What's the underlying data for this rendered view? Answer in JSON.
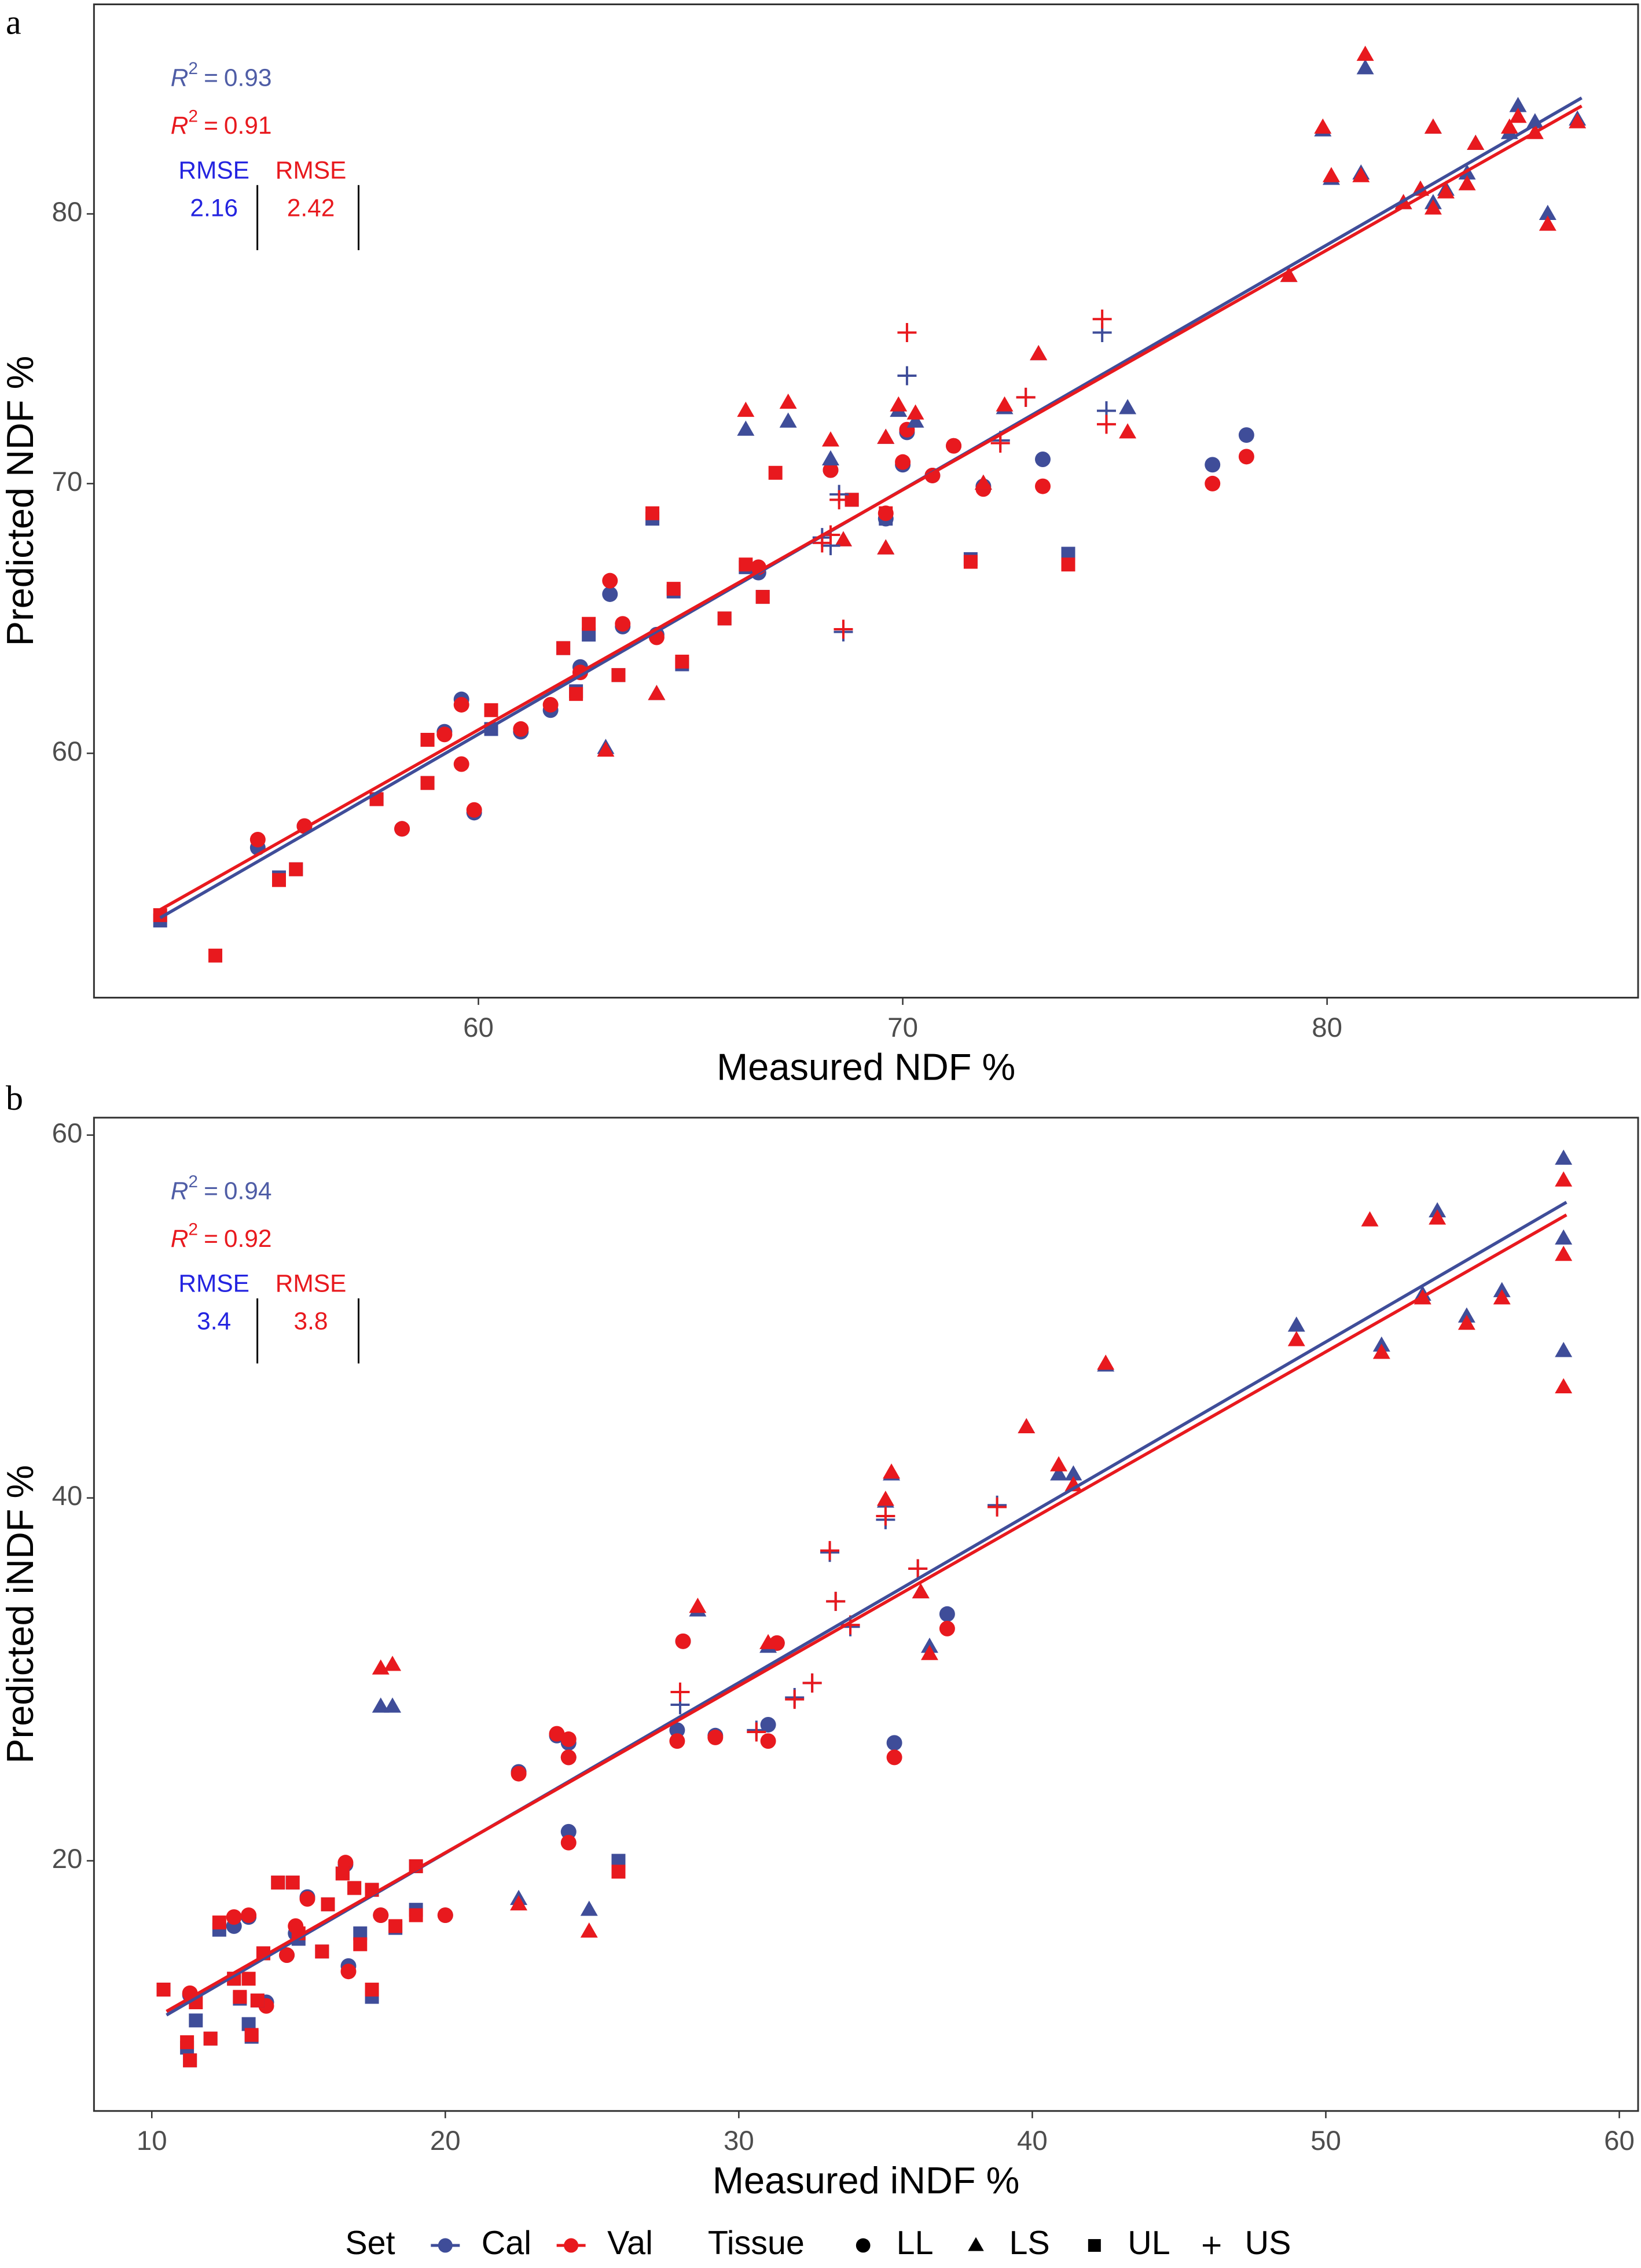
{
  "chart_data": [
    {
      "type": "scatter",
      "panel": "a",
      "x_label": "Measured NDF %",
      "y_label": "Predicted NDF %",
      "xlim": [
        50.94,
        87.33
      ],
      "ylim": [
        50.94,
        87.77
      ],
      "xticks": [
        60,
        70,
        80
      ],
      "yticks": [
        60,
        70,
        80
      ],
      "r2_symbol": "R",
      "r2_sup": "2",
      "r2_eq": "=",
      "rmse_label": "RMSE",
      "stats": [
        {
          "set": "Cal",
          "r2": 0.93,
          "rmse": 2.16,
          "color": "#4f5da6",
          "rmse_color": "#2424e0"
        },
        {
          "set": "Val",
          "r2": 0.91,
          "rmse": 2.42,
          "color": "#e8191e",
          "rmse_color": "#e8191e"
        }
      ],
      "fit_lines": [
        {
          "set": "Cal",
          "x": [
            52.5,
            86
          ],
          "y": [
            53.9,
            84.3
          ]
        },
        {
          "set": "Val",
          "x": [
            52.5,
            86
          ],
          "y": [
            54.2,
            84.0
          ]
        }
      ],
      "series": [
        {
          "set": "Cal",
          "tissue": "UL",
          "x": [
            52.5,
            55.3,
            55.7,
            57.6,
            58.8,
            58.8,
            60.3,
            62.0,
            62.3,
            62.6,
            63.3,
            64.1,
            64.6,
            64.8,
            65.8,
            66.3,
            66.7,
            68.8,
            69.6,
            71.6,
            73.9
          ],
          "y": [
            53.8,
            55.4,
            55.7,
            58.3,
            58.9,
            60.5,
            60.9,
            63.9,
            62.3,
            64.4,
            62.9,
            68.7,
            66.0,
            63.3,
            65.0,
            66.9,
            65.8,
            69.4,
            68.7,
            67.2,
            67.4
          ]
        },
        {
          "set": "Val",
          "tissue": "UL",
          "x": [
            52.5,
            53.8,
            55.3,
            55.7,
            57.6,
            58.8,
            58.8,
            60.3,
            62.0,
            62.3,
            62.6,
            63.3,
            64.1,
            64.6,
            64.8,
            65.8,
            66.3,
            66.7,
            67.0,
            68.8,
            69.6,
            71.6,
            73.9
          ],
          "y": [
            54.0,
            52.5,
            55.3,
            55.7,
            58.3,
            58.9,
            60.5,
            61.6,
            63.9,
            62.2,
            64.8,
            62.9,
            68.9,
            66.1,
            63.4,
            65.0,
            67.0,
            65.8,
            70.4,
            69.4,
            68.9,
            67.1,
            67.0
          ]
        },
        {
          "set": "Cal",
          "tissue": "LL",
          "x": [
            54.8,
            55.9,
            58.2,
            59.2,
            59.6,
            59.9,
            61.0,
            61.7,
            62.4,
            63.1,
            63.4,
            64.2,
            66.6,
            68.3,
            69.6,
            70.0,
            70.1,
            70.7,
            71.2,
            71.9,
            73.3,
            77.3,
            78.1
          ],
          "y": [
            56.5,
            57.3,
            57.2,
            60.8,
            62.0,
            57.8,
            60.8,
            61.6,
            63.2,
            65.9,
            64.7,
            64.4,
            66.7,
            70.5,
            68.7,
            70.7,
            71.9,
            70.3,
            71.4,
            69.9,
            70.9,
            70.7,
            71.8
          ]
        },
        {
          "set": "Val",
          "tissue": "LL",
          "x": [
            54.8,
            55.9,
            58.2,
            59.2,
            59.6,
            59.6,
            59.9,
            61.0,
            61.7,
            62.4,
            63.1,
            63.4,
            64.2,
            66.6,
            68.3,
            69.6,
            70.0,
            70.1,
            70.7,
            71.2,
            71.9,
            73.3,
            77.3,
            78.1
          ],
          "y": [
            56.8,
            57.3,
            57.2,
            60.7,
            61.8,
            59.6,
            57.9,
            60.9,
            61.8,
            63.0,
            66.4,
            64.8,
            64.3,
            66.9,
            70.5,
            68.9,
            70.8,
            72.0,
            70.3,
            71.4,
            69.8,
            69.9,
            70.0,
            71.0
          ]
        },
        {
          "set": "Cal",
          "tissue": "LS",
          "x": [
            63.0,
            64.2,
            66.3,
            67.3,
            68.3,
            68.6,
            69.6,
            69.6,
            69.9,
            70.3,
            71.9,
            72.4,
            73.2,
            75.3,
            79.1,
            79.9,
            80.1,
            80.8,
            80.9,
            81.8,
            82.2,
            82.5,
            82.5,
            82.8,
            83.3,
            83.5,
            84.3,
            84.5,
            84.9,
            85.2,
            85.9
          ],
          "y": [
            60.2,
            62.2,
            72.0,
            72.3,
            70.9,
            67.9,
            71.7,
            67.6,
            72.7,
            72.3,
            70.0,
            72.8,
            74.8,
            72.8,
            77.7,
            83.1,
            81.3,
            81.5,
            85.4,
            80.4,
            80.9,
            80.4,
            83.2,
            80.9,
            81.5,
            82.6,
            83.0,
            84.0,
            83.4,
            80.0,
            83.5
          ]
        },
        {
          "set": "Val",
          "tissue": "LS",
          "x": [
            63.0,
            64.2,
            66.3,
            67.3,
            68.3,
            68.6,
            69.6,
            69.6,
            69.9,
            70.3,
            71.9,
            72.4,
            73.2,
            75.3,
            79.1,
            79.9,
            80.1,
            80.8,
            80.9,
            81.8,
            82.2,
            82.5,
            82.5,
            82.8,
            83.3,
            83.5,
            84.3,
            84.5,
            84.9,
            85.2,
            85.9
          ],
          "y": [
            60.1,
            62.2,
            72.7,
            73.0,
            71.6,
            67.9,
            71.7,
            67.6,
            72.9,
            72.6,
            70.0,
            72.9,
            74.8,
            71.9,
            77.7,
            83.2,
            81.4,
            81.4,
            85.9,
            80.4,
            80.9,
            80.2,
            83.2,
            80.8,
            81.1,
            82.6,
            83.2,
            83.6,
            83.0,
            79.6,
            83.4
          ]
        },
        {
          "set": "Cal",
          "tissue": "US",
          "x": [
            68.1,
            68.3,
            68.5,
            68.6,
            70.1,
            72.3,
            72.9,
            74.7,
            74.8
          ],
          "y": [
            68.0,
            67.7,
            69.6,
            64.5,
            74.0,
            71.6,
            73.2,
            75.6,
            72.7
          ]
        },
        {
          "set": "Val",
          "tissue": "US",
          "x": [
            68.1,
            68.3,
            68.5,
            68.6,
            70.1,
            72.3,
            72.9,
            74.7,
            74.8
          ],
          "y": [
            67.8,
            68.1,
            69.4,
            64.6,
            75.6,
            71.5,
            73.2,
            76.1,
            72.2
          ]
        }
      ]
    },
    {
      "type": "scatter",
      "panel": "b",
      "x_label": "Measured iNDF %",
      "y_label": "Predicted iNDF %",
      "xlim": [
        8.03,
        60.64
      ],
      "ylim": [
        6.21,
        60.96
      ],
      "xticks": [
        10,
        20,
        30,
        40,
        50,
        60
      ],
      "yticks": [
        20,
        40,
        60
      ],
      "r2_symbol": "R",
      "r2_sup": "2",
      "r2_eq": "=",
      "rmse_label": "RMSE",
      "stats": [
        {
          "set": "Cal",
          "r2": 0.94,
          "rmse": 3.4,
          "color": "#4f5da6",
          "rmse_color": "#2424e0"
        },
        {
          "set": "Val",
          "r2": 0.92,
          "rmse": 3.8,
          "color": "#e8191e",
          "rmse_color": "#e8191e"
        }
      ],
      "fit_lines": [
        {
          "set": "Cal",
          "x": [
            10.5,
            58.2
          ],
          "y": [
            11.5,
            56.3
          ]
        },
        {
          "set": "Val",
          "x": [
            10.5,
            58.2
          ],
          "y": [
            11.7,
            55.6
          ]
        }
      ],
      "series": [
        {
          "set": "Cal",
          "tissue": "LL",
          "x": [
            11.3,
            12.8,
            13.3,
            13.9,
            14.6,
            14.9,
            15.3,
            16.6,
            16.7,
            17.8,
            20.0,
            22.5,
            23.8,
            24.2,
            24.2,
            24.2,
            27.9,
            28.1,
            29.2,
            31.0,
            31.3,
            35.3,
            37.1
          ],
          "y": [
            12.6,
            16.4,
            16.9,
            12.2,
            14.8,
            16.0,
            18.0,
            19.8,
            14.2,
            17.0,
            17.0,
            24.9,
            26.9,
            26.5,
            21.6,
            25.7,
            27.2,
            32.1,
            26.9,
            27.5,
            32.0,
            26.5,
            33.6
          ]
        },
        {
          "set": "Val",
          "tissue": "LL",
          "x": [
            11.3,
            12.8,
            13.3,
            13.9,
            14.6,
            14.9,
            15.3,
            16.6,
            16.7,
            17.8,
            20.0,
            22.5,
            23.8,
            24.2,
            24.2,
            24.2,
            27.9,
            28.1,
            29.2,
            31.0,
            31.3,
            35.3,
            37.1
          ],
          "y": [
            12.7,
            16.9,
            17.0,
            12.0,
            14.8,
            16.4,
            17.9,
            19.9,
            13.9,
            17.0,
            17.0,
            24.8,
            27.0,
            26.7,
            21.0,
            25.7,
            26.6,
            32.1,
            26.8,
            26.6,
            32.0,
            25.7,
            32.8
          ]
        },
        {
          "set": "Cal",
          "tissue": "LS",
          "x": [
            17.8,
            18.2,
            22.5,
            24.9,
            28.6,
            31.0,
            35.0,
            35.2,
            36.2,
            36.5,
            39.8,
            40.9,
            41.4,
            42.5,
            49.0,
            51.9,
            53.3,
            53.8,
            54.8,
            56.0,
            58.1,
            58.1,
            58.1
          ],
          "y": [
            28.5,
            28.5,
            17.9,
            17.3,
            33.8,
            31.8,
            39.8,
            41.3,
            34.8,
            31.8,
            43.9,
            41.3,
            41.3,
            47.3,
            49.5,
            48.4,
            51.2,
            55.8,
            50.0,
            51.4,
            58.7,
            54.3,
            48.1
          ]
        },
        {
          "set": "Val",
          "tissue": "LS",
          "x": [
            17.8,
            18.2,
            22.5,
            24.9,
            28.6,
            31.0,
            35.0,
            35.2,
            36.2,
            36.5,
            39.8,
            40.9,
            41.4,
            42.5,
            49.0,
            51.5,
            51.9,
            53.3,
            53.8,
            54.8,
            56.0,
            58.1,
            58.1,
            58.1
          ],
          "y": [
            30.6,
            30.8,
            17.6,
            16.1,
            34.0,
            32.0,
            39.9,
            41.4,
            34.8,
            31.4,
            43.9,
            41.8,
            40.7,
            47.4,
            48.7,
            55.3,
            48.0,
            51.0,
            55.4,
            49.6,
            51.0,
            57.5,
            53.4,
            46.1
          ]
        },
        {
          "set": "Cal",
          "tissue": "UL",
          "x": [
            10.4,
            11.2,
            11.3,
            11.5,
            12.0,
            12.3,
            12.8,
            13.0,
            13.3,
            13.4,
            13.6,
            13.8,
            14.3,
            14.8,
            15.0,
            15.8,
            16.0,
            16.5,
            16.9,
            17.1,
            17.5,
            17.5,
            18.3,
            19.0,
            19.0,
            25.9
          ],
          "y": [
            12.9,
            9.7,
            9.0,
            11.2,
            10.2,
            16.2,
            13.5,
            12.4,
            11.0,
            10.3,
            12.3,
            14.9,
            18.8,
            18.8,
            15.7,
            15.0,
            17.6,
            19.3,
            18.5,
            16.0,
            12.5,
            18.4,
            16.3,
            17.3,
            19.7,
            20.0
          ]
        },
        {
          "set": "Val",
          "tissue": "UL",
          "x": [
            10.4,
            11.2,
            11.3,
            11.5,
            12.0,
            12.3,
            12.8,
            13.0,
            13.3,
            13.4,
            13.6,
            13.8,
            14.3,
            14.8,
            15.0,
            15.8,
            16.0,
            16.5,
            16.9,
            17.1,
            17.5,
            17.5,
            18.3,
            19.0,
            19.0,
            25.9
          ],
          "y": [
            12.9,
            10.0,
            9.0,
            12.2,
            10.2,
            16.6,
            13.5,
            12.5,
            13.5,
            10.4,
            12.3,
            14.9,
            18.8,
            18.8,
            16.0,
            15.0,
            17.6,
            19.3,
            18.5,
            15.4,
            12.9,
            18.4,
            16.4,
            17.0,
            19.7,
            19.4
          ]
        },
        {
          "set": "Cal",
          "tissue": "US",
          "x": [
            28.0,
            30.6,
            31.9,
            32.5,
            33.1,
            33.3,
            33.8,
            35.0,
            36.1,
            38.8
          ],
          "y": [
            28.6,
            27.2,
            29.0,
            29.8,
            37.0,
            34.3,
            32.9,
            38.8,
            36.1,
            39.6
          ]
        },
        {
          "set": "Val",
          "tissue": "US",
          "x": [
            28.0,
            30.6,
            31.9,
            32.5,
            33.1,
            33.3,
            33.8,
            35.0,
            36.1,
            38.8
          ],
          "y": [
            29.3,
            27.1,
            28.9,
            29.8,
            37.1,
            34.3,
            33.0,
            39.0,
            36.1,
            39.5
          ]
        }
      ]
    }
  ],
  "legend": {
    "set_title": "Set",
    "sets": [
      {
        "name": "Cal",
        "color": "#3f4d99"
      },
      {
        "name": "Val",
        "color": "#e8191e"
      }
    ],
    "tissue_title": "Tissue",
    "tissues": [
      {
        "name": "LL",
        "shape": "circle"
      },
      {
        "name": "LS",
        "shape": "triangle"
      },
      {
        "name": "UL",
        "shape": "square"
      },
      {
        "name": "US",
        "shape": "plus"
      }
    ]
  }
}
